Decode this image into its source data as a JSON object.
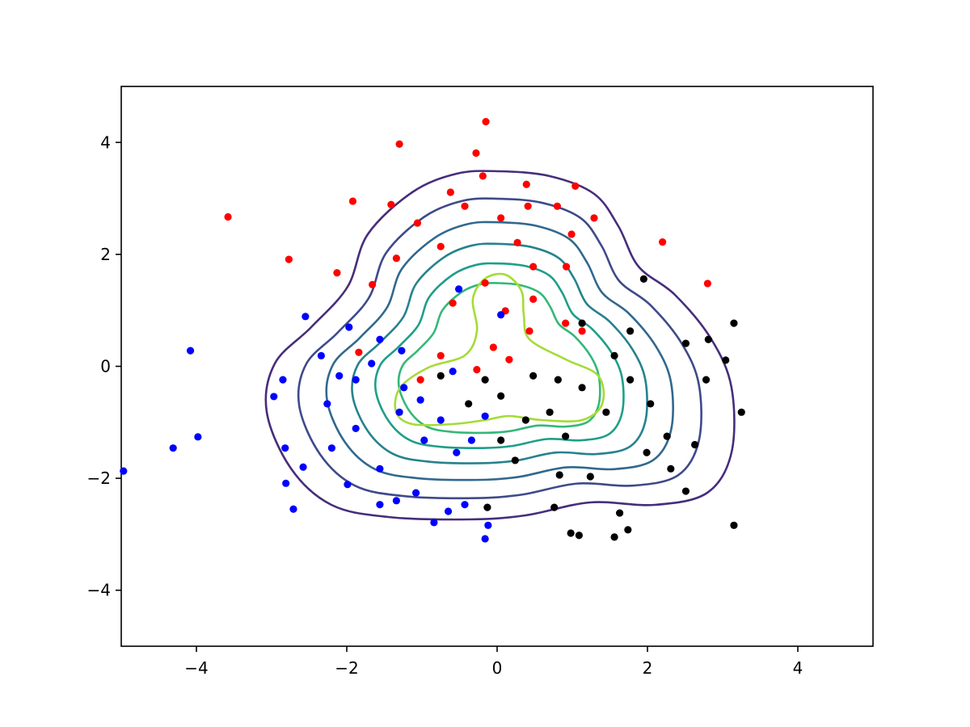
{
  "chart_data": {
    "type": "scatter",
    "xlim": [
      -5,
      5
    ],
    "ylim": [
      -5,
      5
    ],
    "xticks": [
      {
        "value": -4,
        "label": "−4"
      },
      {
        "value": -2,
        "label": "−2"
      },
      0,
      2,
      4
    ],
    "yticks": [
      {
        "value": -4,
        "label": "−4"
      },
      {
        "value": -2,
        "label": "−2"
      },
      0,
      2,
      4
    ],
    "grid": false,
    "series": [
      {
        "color": "red",
        "x": [
          -0.15,
          -1.3,
          -0.28,
          -3.58,
          -1.92,
          -2.77,
          -2.13,
          -1.41,
          -1.06,
          -0.62,
          -0.19,
          0.39,
          0.8,
          1.04,
          1.29,
          2.2,
          2.8,
          0.92,
          -0.75,
          -1.34,
          -1.66,
          0.27,
          -0.16,
          0.11,
          0.16,
          -0.05,
          -0.75,
          -1.02,
          -1.84,
          -0.27,
          0.48,
          0.91,
          1.13,
          0.05,
          -0.43,
          0.41,
          0.99,
          -0.59,
          0.43,
          0.48
        ],
        "values": [
          4.37,
          3.97,
          3.81,
          2.67,
          2.95,
          1.91,
          1.67,
          2.89,
          2.56,
          3.11,
          3.4,
          3.25,
          2.86,
          3.22,
          2.65,
          2.22,
          1.48,
          1.78,
          2.14,
          1.93,
          1.46,
          2.21,
          1.49,
          0.99,
          0.12,
          0.34,
          0.19,
          -0.24,
          0.25,
          -0.06,
          1.78,
          0.77,
          0.63,
          2.65,
          2.86,
          2.86,
          2.36,
          1.13,
          0.63,
          1.2
        ]
      },
      {
        "color": "blue",
        "x": [
          -4.97,
          -4.31,
          -4.08,
          -3.98,
          -2.55,
          -2.97,
          -2.82,
          -2.71,
          -2.81,
          -2.58,
          -2.26,
          -2.1,
          -2.34,
          -1.97,
          -1.56,
          -1.27,
          -1.88,
          -2.2,
          -1.99,
          -1.56,
          -1.34,
          -1.08,
          -0.84,
          -0.65,
          -0.43,
          -0.16,
          -0.12,
          -1.3,
          -1.02,
          -0.75,
          -0.54,
          -0.34,
          -0.16,
          -0.51,
          -0.59,
          -1.24,
          -1.56,
          -0.97,
          -1.88,
          -1.67,
          0.05,
          -2.85
        ],
        "values": [
          -1.87,
          -1.46,
          0.28,
          -1.26,
          0.89,
          -0.54,
          -1.46,
          -2.55,
          -2.09,
          -1.8,
          -0.67,
          -0.17,
          0.19,
          0.7,
          0.48,
          0.28,
          -1.11,
          -1.46,
          -2.11,
          -2.47,
          -2.4,
          -2.26,
          -2.79,
          -2.59,
          -2.47,
          -3.08,
          -2.84,
          -0.82,
          -0.6,
          -0.96,
          -1.54,
          -1.32,
          -0.89,
          1.38,
          -0.09,
          -0.38,
          -1.83,
          -1.32,
          -0.24,
          0.05,
          0.92,
          -0.24
        ]
      },
      {
        "color": "black",
        "x": [
          3.15,
          3.25,
          3.15,
          3.04,
          2.81,
          2.51,
          2.51,
          2.26,
          1.95,
          1.56,
          1.74,
          1.63,
          0.98,
          1.09,
          0.76,
          0.83,
          0.24,
          -0.13,
          0.05,
          0.38,
          0.81,
          0.48,
          1.13,
          1.45,
          1.56,
          1.77,
          2.04,
          2.31,
          2.63,
          1.24,
          0.91,
          0.7,
          0.05,
          -0.38,
          -0.75,
          -0.16,
          1.13,
          1.77,
          2.78,
          1.99
        ],
        "values": [
          0.77,
          -0.82,
          -2.84,
          0.11,
          0.48,
          0.41,
          -2.23,
          -1.25,
          1.56,
          -3.05,
          -2.92,
          -2.62,
          -2.98,
          -3.02,
          -2.52,
          -1.94,
          -1.68,
          -2.52,
          -1.32,
          -0.96,
          -0.24,
          -0.17,
          -0.38,
          -0.82,
          0.19,
          -0.24,
          -0.67,
          -1.83,
          -1.4,
          -1.97,
          -1.25,
          -0.82,
          -0.53,
          -0.67,
          -0.17,
          -0.24,
          0.77,
          0.63,
          -0.24,
          -1.54
        ]
      }
    ]
  }
}
